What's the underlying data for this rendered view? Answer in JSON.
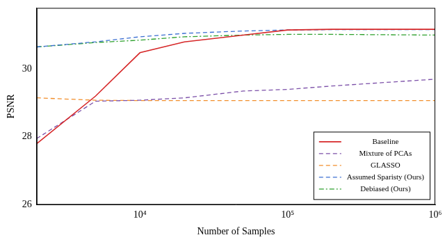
{
  "chart_data": {
    "type": "line",
    "x_label": "Number of Samples",
    "y_label": "PSNR",
    "x": [
      2000,
      5000,
      10000,
      20000,
      50000,
      100000,
      200000,
      1000000
    ],
    "series": [
      {
        "name": "Baseline",
        "color": "#d62728",
        "line_style": "solid",
        "values": [
          27.8,
          29.2,
          30.48,
          30.8,
          31.0,
          31.15,
          31.17,
          31.17
        ]
      },
      {
        "name": "Mixture of PCAs",
        "color": "#7b4fa8",
        "line_style": "dashed",
        "values": [
          27.95,
          29.05,
          29.08,
          29.15,
          29.35,
          29.4,
          29.5,
          29.7
        ]
      },
      {
        "name": "GLASSO",
        "color": "#f28e2b",
        "line_style": "dashed",
        "values": [
          29.15,
          29.08,
          29.07,
          29.07,
          29.07,
          29.07,
          29.07,
          29.07
        ]
      },
      {
        "name": "Assumed Sparisty (Ours)",
        "color": "#3b6fd1",
        "line_style": "dashed",
        "values": [
          30.65,
          30.8,
          30.95,
          31.05,
          31.12,
          31.15,
          31.16,
          31.16
        ]
      },
      {
        "name": "Debiased (Ours)",
        "color": "#2ca02c",
        "line_style": "dashdot",
        "values": [
          30.65,
          30.78,
          30.85,
          30.95,
          31.0,
          31.02,
          31.02,
          31.0
        ]
      }
    ],
    "log": "x",
    "xlim": [
      2000,
      1000000
    ],
    "xticks": [
      {
        "value": 10000,
        "label": "10⁴"
      },
      {
        "value": 100000,
        "label": "10⁵"
      },
      {
        "value": 1000000,
        "label": "10⁶"
      }
    ],
    "ylim": [
      26,
      31.8
    ],
    "yticks": [
      26,
      28,
      30
    ],
    "grid": false,
    "legend": "lower right",
    "marker": "none"
  }
}
